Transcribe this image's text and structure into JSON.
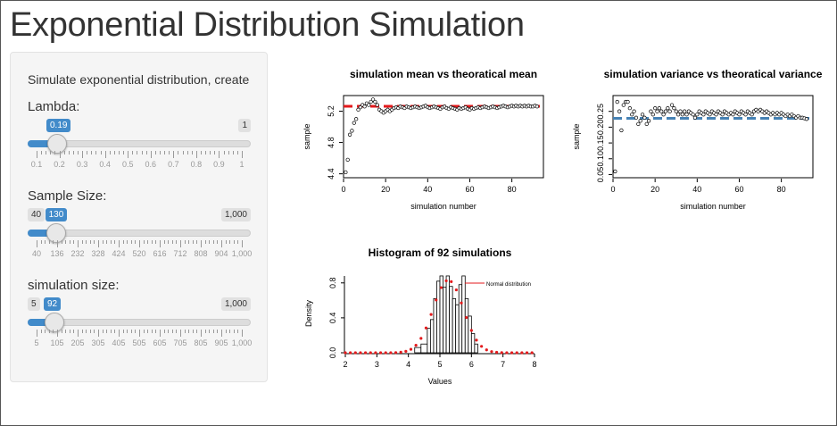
{
  "page": {
    "title": "Exponential Distribution Simulation"
  },
  "sidebar": {
    "description": "Simulate exponential distribution, create",
    "sliders": [
      {
        "label": "Lambda:",
        "min_label": "0.1",
        "max_label": "1",
        "value_label": "0.19",
        "value_fraction": 0.1,
        "ticks": [
          "0.1",
          "0.2",
          "0.3",
          "0.4",
          "0.5",
          "0.6",
          "0.7",
          "0.8",
          "0.9",
          "1"
        ],
        "show_min_badge": false
      },
      {
        "label": "Sample Size:",
        "min_label": "40",
        "max_label": "1,000",
        "value_label": "130",
        "value_fraction": 0.094,
        "ticks": [
          "40",
          "136",
          "232",
          "328",
          "424",
          "520",
          "616",
          "712",
          "808",
          "904",
          "1,000"
        ],
        "show_min_badge": true
      },
      {
        "label": "simulation size:",
        "min_label": "5",
        "max_label": "1,000",
        "value_label": "92",
        "value_fraction": 0.087,
        "ticks": [
          "5",
          "105",
          "205",
          "305",
          "405",
          "505",
          "605",
          "705",
          "805",
          "905",
          "1,000"
        ],
        "show_min_badge": true
      }
    ]
  },
  "chart_data": [
    {
      "type": "scatter",
      "title": "simulation mean vs theoratical mean",
      "xlabel": "simulation number",
      "ylabel": "sample",
      "xlim": [
        0,
        95
      ],
      "ylim": [
        4.35,
        5.4
      ],
      "xticks": [
        "0",
        "20",
        "40",
        "60",
        "80"
      ],
      "yticks": [
        "4.4",
        "4.8",
        "5.2"
      ],
      "reference_line": {
        "value": 5.263,
        "color": "#e31a1c",
        "style": "dashed"
      },
      "series": [
        {
          "x": [
            1,
            2,
            3,
            4,
            5,
            6,
            7,
            8,
            9,
            10,
            11,
            12,
            13,
            14,
            15,
            16,
            17,
            18,
            19,
            20,
            21,
            22,
            23,
            24,
            25,
            26,
            27,
            28,
            29,
            30,
            31,
            32,
            33,
            34,
            35,
            36,
            37,
            38,
            39,
            40,
            41,
            42,
            43,
            44,
            45,
            46,
            47,
            48,
            49,
            50,
            51,
            52,
            53,
            54,
            55,
            56,
            57,
            58,
            59,
            60,
            61,
            62,
            63,
            64,
            65,
            66,
            67,
            68,
            69,
            70,
            71,
            72,
            73,
            74,
            75,
            76,
            77,
            78,
            79,
            80,
            81,
            82,
            83,
            84,
            85,
            86,
            87,
            88,
            89,
            90,
            91,
            92
          ],
          "y": [
            4.42,
            4.58,
            4.9,
            4.95,
            5.05,
            5.1,
            5.22,
            5.25,
            5.28,
            5.26,
            5.3,
            5.28,
            5.32,
            5.35,
            5.32,
            5.28,
            5.22,
            5.2,
            5.18,
            5.2,
            5.22,
            5.2,
            5.22,
            5.24,
            5.25,
            5.24,
            5.26,
            5.25,
            5.24,
            5.26,
            5.25,
            5.24,
            5.25,
            5.26,
            5.25,
            5.24,
            5.25,
            5.26,
            5.27,
            5.25,
            5.24,
            5.25,
            5.26,
            5.25,
            5.24,
            5.23,
            5.25,
            5.26,
            5.24,
            5.23,
            5.25,
            5.24,
            5.23,
            5.22,
            5.24,
            5.23,
            5.24,
            5.25,
            5.23,
            5.22,
            5.24,
            5.23,
            5.24,
            5.25,
            5.24,
            5.25,
            5.26,
            5.25,
            5.24,
            5.25,
            5.26,
            5.25,
            5.24,
            5.25,
            5.26,
            5.27,
            5.26,
            5.25,
            5.26,
            5.27,
            5.26,
            5.27,
            5.26,
            5.27,
            5.26,
            5.27,
            5.26,
            5.27,
            5.26,
            5.26,
            5.27,
            5.26
          ]
        }
      ]
    },
    {
      "type": "scatter",
      "title": "simulation variance vs theoratical variance",
      "xlabel": "simulation number",
      "ylabel": "sample",
      "xlim": [
        0,
        95
      ],
      "ylim": [
        0.04,
        0.3
      ],
      "xticks": [
        "0",
        "20",
        "40",
        "60",
        "80"
      ],
      "yticks": [
        "0.05",
        "0.10",
        "0.15",
        "0.20",
        "0.25"
      ],
      "reference_line": {
        "value": 0.228,
        "color": "#4682b4",
        "style": "dashed"
      },
      "series": [
        {
          "x": [
            1,
            2,
            3,
            4,
            5,
            6,
            7,
            8,
            9,
            10,
            11,
            12,
            13,
            14,
            15,
            16,
            17,
            18,
            19,
            20,
            21,
            22,
            23,
            24,
            25,
            26,
            27,
            28,
            29,
            30,
            31,
            32,
            33,
            34,
            35,
            36,
            37,
            38,
            39,
            40,
            41,
            42,
            43,
            44,
            45,
            46,
            47,
            48,
            49,
            50,
            51,
            52,
            53,
            54,
            55,
            56,
            57,
            58,
            59,
            60,
            61,
            62,
            63,
            64,
            65,
            66,
            67,
            68,
            69,
            70,
            71,
            72,
            73,
            74,
            75,
            76,
            77,
            78,
            79,
            80,
            81,
            82,
            83,
            84,
            85,
            86,
            87,
            88,
            89,
            90,
            91,
            92
          ],
          "y": [
            0.06,
            0.28,
            0.25,
            0.19,
            0.27,
            0.28,
            0.28,
            0.26,
            0.24,
            0.25,
            0.23,
            0.21,
            0.22,
            0.24,
            0.23,
            0.21,
            0.22,
            0.25,
            0.24,
            0.26,
            0.25,
            0.26,
            0.25,
            0.24,
            0.25,
            0.26,
            0.25,
            0.27,
            0.26,
            0.25,
            0.24,
            0.25,
            0.24,
            0.25,
            0.24,
            0.25,
            0.245,
            0.24,
            0.23,
            0.24,
            0.25,
            0.245,
            0.24,
            0.25,
            0.245,
            0.24,
            0.25,
            0.245,
            0.24,
            0.25,
            0.245,
            0.24,
            0.25,
            0.245,
            0.24,
            0.245,
            0.24,
            0.25,
            0.245,
            0.24,
            0.25,
            0.245,
            0.24,
            0.25,
            0.245,
            0.24,
            0.25,
            0.255,
            0.25,
            0.255,
            0.25,
            0.245,
            0.25,
            0.245,
            0.24,
            0.245,
            0.24,
            0.245,
            0.24,
            0.245,
            0.24,
            0.235,
            0.24,
            0.235,
            0.24,
            0.235,
            0.23,
            0.235,
            0.23,
            0.23,
            0.228,
            0.226
          ]
        }
      ]
    },
    {
      "type": "bar",
      "title": "Histogram of 92 simulations",
      "xlabel": "Values",
      "ylabel": "Density",
      "xlim": [
        2,
        8
      ],
      "ylim": [
        0,
        0.9
      ],
      "xticks": [
        "2",
        "3",
        "4",
        "5",
        "6",
        "7",
        "8"
      ],
      "yticks": [
        "0.0",
        "0.4",
        "0.8"
      ],
      "legend": {
        "label": "Normal distribution",
        "color": "#e31a1c",
        "placement": "top-right"
      },
      "bins": [
        {
          "x0": 4.2,
          "x1": 4.4,
          "value": 0.06
        },
        {
          "x0": 4.4,
          "x1": 4.6,
          "value": 0.1
        },
        {
          "x0": 4.6,
          "x1": 4.7,
          "value": 0.28
        },
        {
          "x0": 4.7,
          "x1": 4.8,
          "value": 0.38
        },
        {
          "x0": 4.8,
          "x1": 4.9,
          "value": 0.62
        },
        {
          "x0": 4.9,
          "x1": 5.0,
          "value": 0.82
        },
        {
          "x0": 5.0,
          "x1": 5.1,
          "value": 0.88
        },
        {
          "x0": 5.1,
          "x1": 5.2,
          "value": 0.75
        },
        {
          "x0": 5.2,
          "x1": 5.3,
          "value": 0.88
        },
        {
          "x0": 5.3,
          "x1": 5.4,
          "value": 0.76
        },
        {
          "x0": 5.4,
          "x1": 5.5,
          "value": 0.62
        },
        {
          "x0": 5.5,
          "x1": 5.6,
          "value": 0.55
        },
        {
          "x0": 5.6,
          "x1": 5.7,
          "value": 0.78
        },
        {
          "x0": 5.7,
          "x1": 5.8,
          "value": 0.88
        },
        {
          "x0": 5.8,
          "x1": 5.9,
          "value": 0.62
        },
        {
          "x0": 5.9,
          "x1": 6.0,
          "value": 0.42
        },
        {
          "x0": 6.0,
          "x1": 6.1,
          "value": 0.22
        },
        {
          "x0": 6.1,
          "x1": 6.2,
          "value": 0.1
        }
      ],
      "normal_curve": {
        "mean": 5.263,
        "sd": 0.48
      }
    }
  ]
}
